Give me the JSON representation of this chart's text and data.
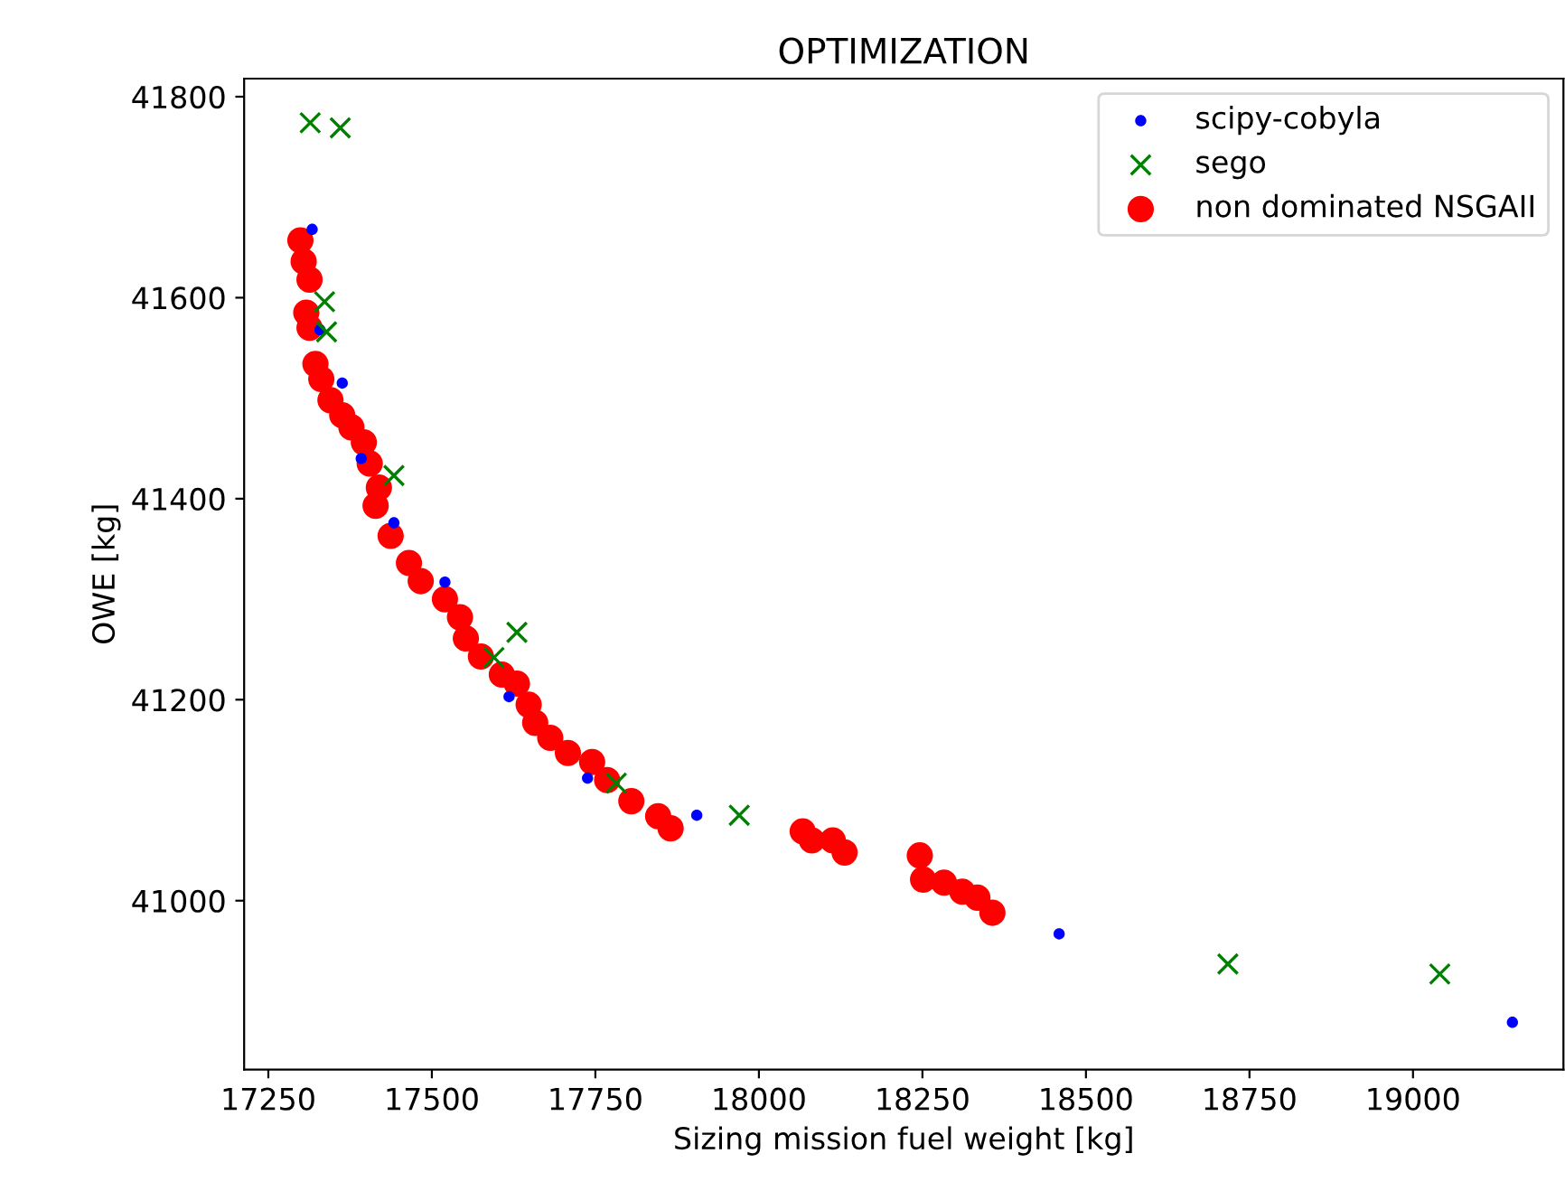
{
  "chart_data": {
    "type": "scatter",
    "title": "OPTIMIZATION",
    "xlabel": "Sizing mission fuel weight [kg]",
    "ylabel": "OWE [kg]",
    "xlim": [
      17213,
      19230
    ],
    "ylim": [
      40832,
      41818
    ],
    "xticks": [
      17250,
      17500,
      17750,
      18000,
      18250,
      18500,
      18750,
      19000
    ],
    "yticks": [
      41000,
      41200,
      41400,
      41600,
      41800
    ],
    "grid": false,
    "legend": "top right",
    "series": [
      {
        "name": "scipy-cobyla",
        "color": "#0000ff",
        "marker": "circle",
        "x": [
          17317,
          17329,
          17363,
          17392,
          17442,
          17520,
          17618,
          17738,
          17905,
          18459,
          19152
        ],
        "values": [
          41668,
          41568,
          41515,
          41440,
          41376,
          41317,
          41203,
          41122,
          41085,
          40967,
          40879
        ]
      },
      {
        "name": "sego",
        "color": "#008000",
        "marker": "cross",
        "x": [
          17314,
          17360,
          17336,
          17339,
          17442,
          17630,
          17595,
          17782,
          17970,
          18717,
          19041
        ],
        "values": [
          41774,
          41769,
          41596,
          41566,
          41423,
          41267,
          41242,
          41117,
          41085,
          40937,
          40927
        ]
      },
      {
        "name": "non dominated NSGAII",
        "color": "#ff0000",
        "marker": "circle",
        "x": [
          17299,
          17304,
          17313,
          17308,
          17313,
          17322,
          17331,
          17345,
          17363,
          17377,
          17396,
          17405,
          17419,
          17414,
          17437,
          17465,
          17483,
          17520,
          17543,
          17552,
          17575,
          17607,
          17630,
          17648,
          17658,
          17681,
          17708,
          17745,
          17768,
          17805,
          17846,
          17865,
          18067,
          18081,
          18113,
          18131,
          18246,
          18251,
          18283,
          18311,
          18334,
          18357
        ],
        "values": [
          41657,
          41636,
          41618,
          41585,
          41570,
          41534,
          41519,
          41498,
          41483,
          41471,
          41456,
          41435,
          41411,
          41393,
          41363,
          41336,
          41318,
          41300,
          41282,
          41261,
          41243,
          41225,
          41216,
          41195,
          41177,
          41162,
          41147,
          41138,
          41120,
          41099,
          41084,
          41072,
          41069,
          41060,
          41060,
          41048,
          41045,
          41021,
          41018,
          41009,
          41003,
          40988
        ]
      }
    ]
  }
}
